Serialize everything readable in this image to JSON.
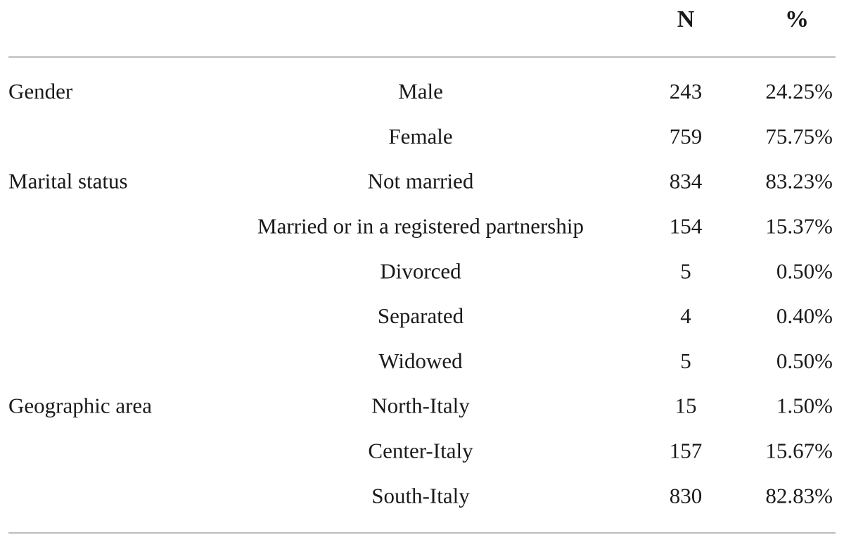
{
  "table": {
    "header": {
      "n": "N",
      "percent": "%"
    },
    "rows": [
      {
        "group": "Gender",
        "category": "Male",
        "n": 243,
        "percent": "24.25%"
      },
      {
        "category": "Female",
        "n": 759,
        "percent": "75.75%"
      },
      {
        "group": "Marital status",
        "category": "Not married",
        "n": 834,
        "percent": "83.23%"
      },
      {
        "category": "Married or in a registered partnership",
        "n": 154,
        "percent": "15.37%"
      },
      {
        "category": "Divorced",
        "n": 5,
        "percent": "0.50%"
      },
      {
        "category": "Separated",
        "n": 4,
        "percent": "0.40%"
      },
      {
        "category": "Widowed",
        "n": 5,
        "percent": "0.50%"
      },
      {
        "group": "Geographic area",
        "category": "North-Italy",
        "n": 15,
        "percent": "1.50%"
      },
      {
        "category": "Center-Italy",
        "n": 157,
        "percent": "15.67%"
      },
      {
        "category": "South-Italy",
        "n": 830,
        "percent": "82.83%"
      }
    ]
  }
}
